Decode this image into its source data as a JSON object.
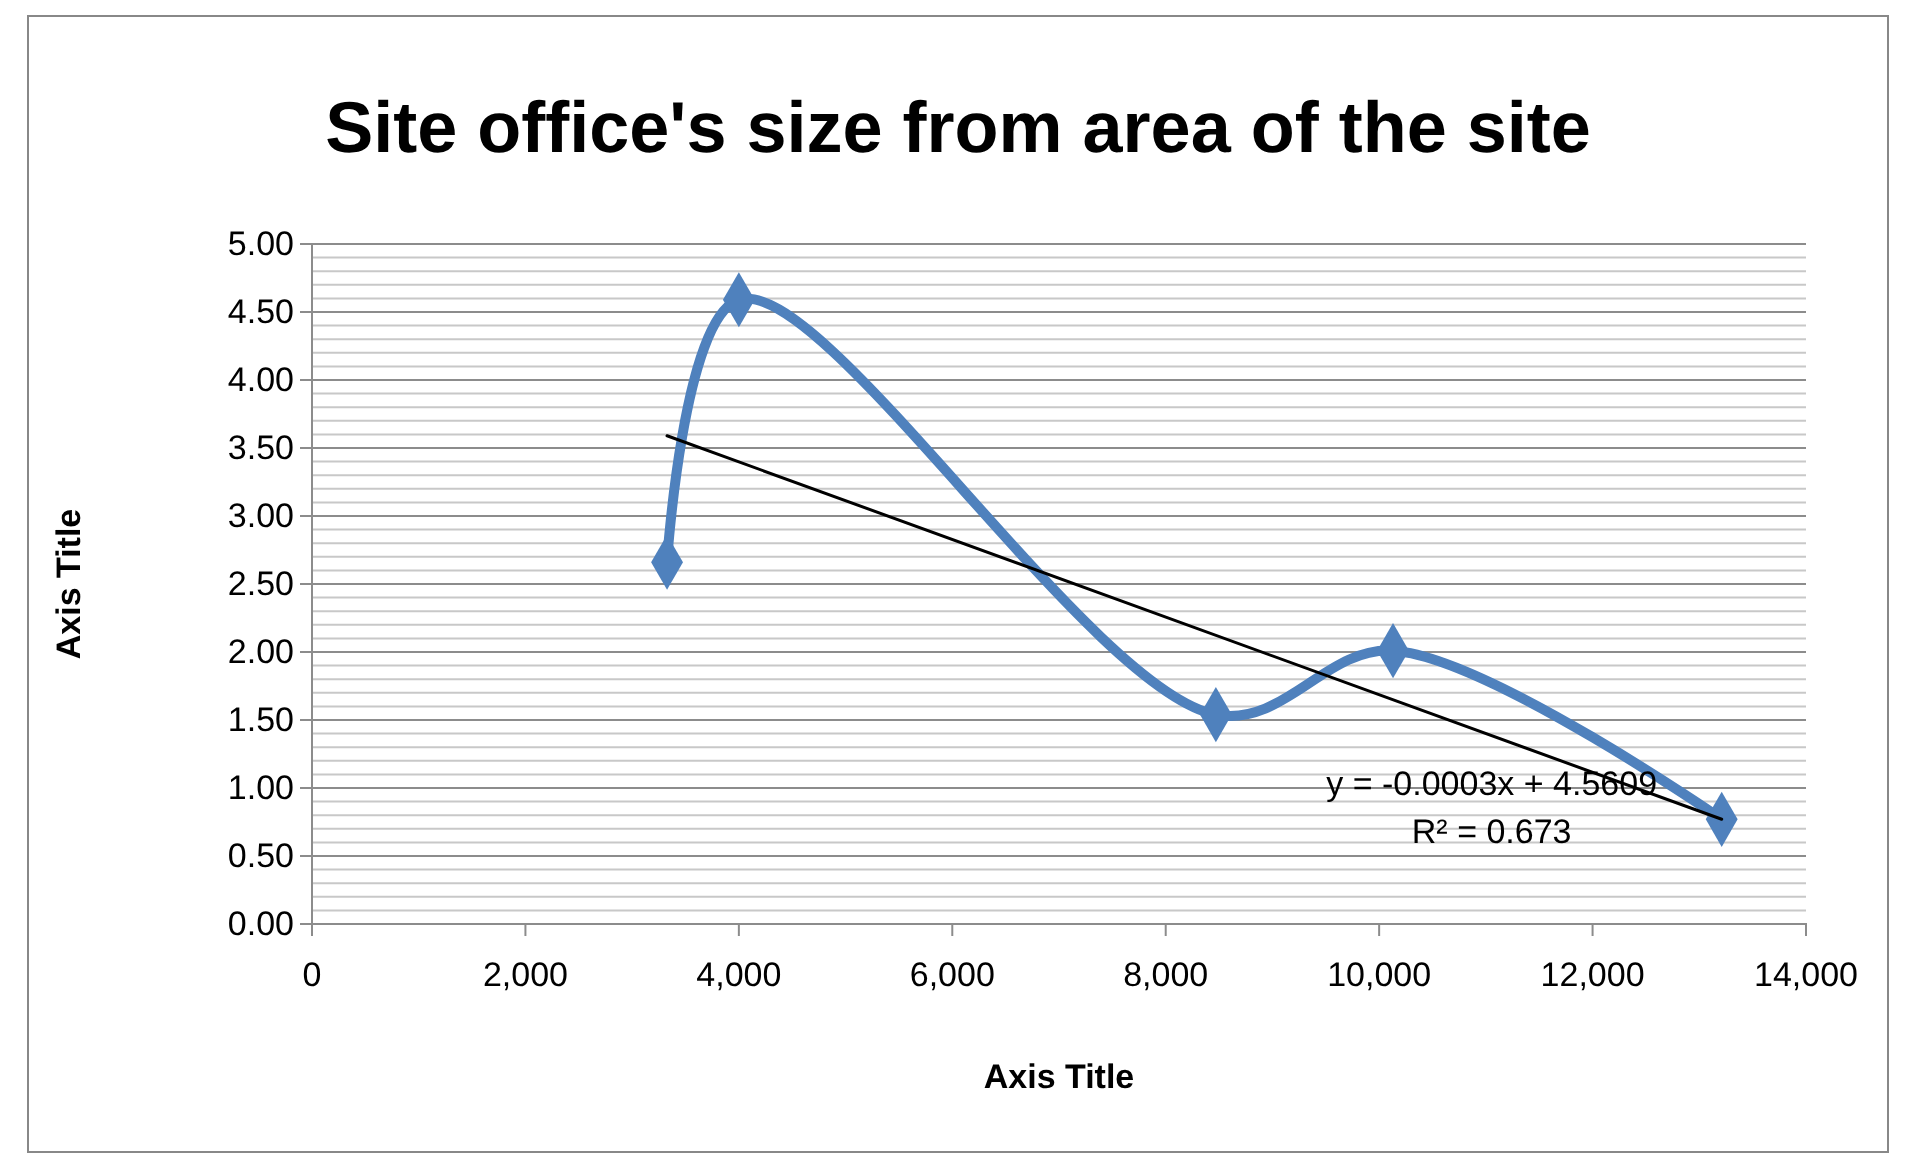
{
  "chart_data": {
    "type": "line",
    "title": "Site office's size from area of the site",
    "xlabel": "Axis Title",
    "ylabel": "Axis Title",
    "series": [
      {
        "color": "#4f81bd",
        "marker": "diamond",
        "x": [
          3327,
          4000,
          8470,
          10130,
          13210
        ],
        "values": [
          2.66,
          4.59,
          1.54,
          2.01,
          0.77
        ]
      },
      {
        "type": "line",
        "color": "#000000",
        "marker": "none",
        "x": [
          3327,
          13210
        ],
        "values": [
          3.59,
          0.77
        ]
      }
    ],
    "annotations": [
      "y = -0.0003x + 4.5609",
      "R² = 0.673"
    ],
    "xlim": [
      0,
      14000
    ],
    "xticks": [
      {
        "value": 0,
        "label": "0"
      },
      {
        "value": 2000,
        "label": "2,000"
      },
      {
        "value": 4000,
        "label": "4,000"
      },
      {
        "value": 6000,
        "label": "6,000"
      },
      {
        "value": 8000,
        "label": "8,000"
      },
      {
        "value": 10000,
        "label": "10,000"
      },
      {
        "value": 12000,
        "label": "12,000"
      },
      {
        "value": 14000,
        "label": "14,000"
      }
    ],
    "ylim": [
      0,
      5
    ],
    "yticks": [
      {
        "value": 0,
        "label": "0.00"
      },
      {
        "value": 0.5,
        "label": "0.50"
      },
      {
        "value": 1,
        "label": "1.00"
      },
      {
        "value": 1.5,
        "label": "1.50"
      },
      {
        "value": 2,
        "label": "2.00"
      },
      {
        "value": 2.5,
        "label": "2.50"
      },
      {
        "value": 3,
        "label": "3.00"
      },
      {
        "value": 3.5,
        "label": "3.50"
      },
      {
        "value": 4,
        "label": "4.00"
      },
      {
        "value": 4.5,
        "label": "4.50"
      },
      {
        "value": 5,
        "label": "5.00"
      }
    ],
    "grid": "y"
  }
}
